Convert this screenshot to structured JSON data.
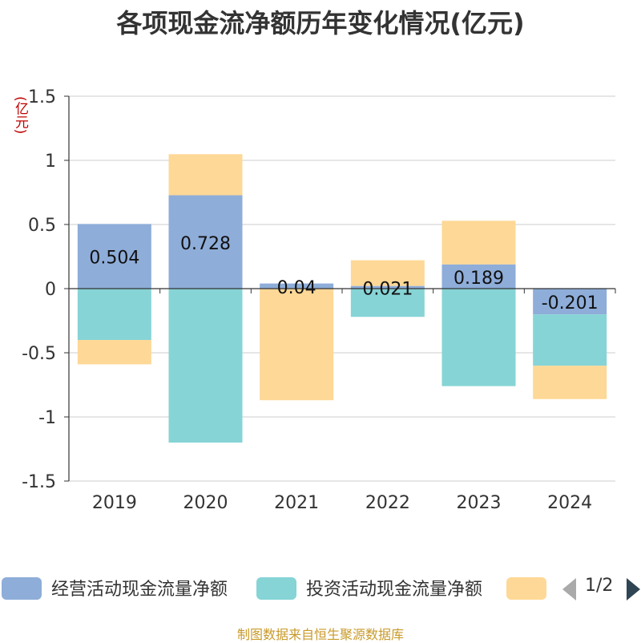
{
  "title": "各项现金流净额历年变化情况(亿元)",
  "unit_label": "(亿元)",
  "source": "制图数据来自恒生聚源数据库",
  "legend": {
    "items": [
      {
        "label": "经营活动现金流量净额",
        "color": "#8eadd9"
      },
      {
        "label": "投资活动现金流量净额",
        "color": "#86d4d6"
      },
      {
        "label": "",
        "color": "#fed896"
      }
    ],
    "page_indicator": "1/2"
  },
  "chart_data": {
    "type": "bar",
    "stacked": true,
    "categories": [
      "2019",
      "2020",
      "2021",
      "2022",
      "2023",
      "2024"
    ],
    "ylim": [
      -1.5,
      1.5
    ],
    "yticks": [
      1.5,
      1,
      0.5,
      0,
      -0.5,
      -1,
      -1.5
    ],
    "ytick_labels": [
      "1.5",
      "1",
      "0.5",
      "0",
      "-0.5",
      "-1",
      "-1.5"
    ],
    "grid": true,
    "series": [
      {
        "name": "经营活动现金流量净额",
        "color": "#8eadd9",
        "values": [
          0.504,
          0.728,
          0.04,
          0.021,
          0.189,
          -0.201
        ],
        "labels": [
          "0.504",
          "0.728",
          "0.04",
          "0.021",
          "0.189",
          "-0.201"
        ]
      },
      {
        "name": "投资活动现金流量净额",
        "color": "#86d4d6",
        "values": [
          -0.4,
          -1.2,
          0,
          -0.22,
          -0.76,
          -0.4
        ]
      },
      {
        "color": "#fed896",
        "values": [
          -0.19,
          0.32,
          -0.87,
          0.2,
          0.34,
          -0.26
        ]
      }
    ]
  }
}
